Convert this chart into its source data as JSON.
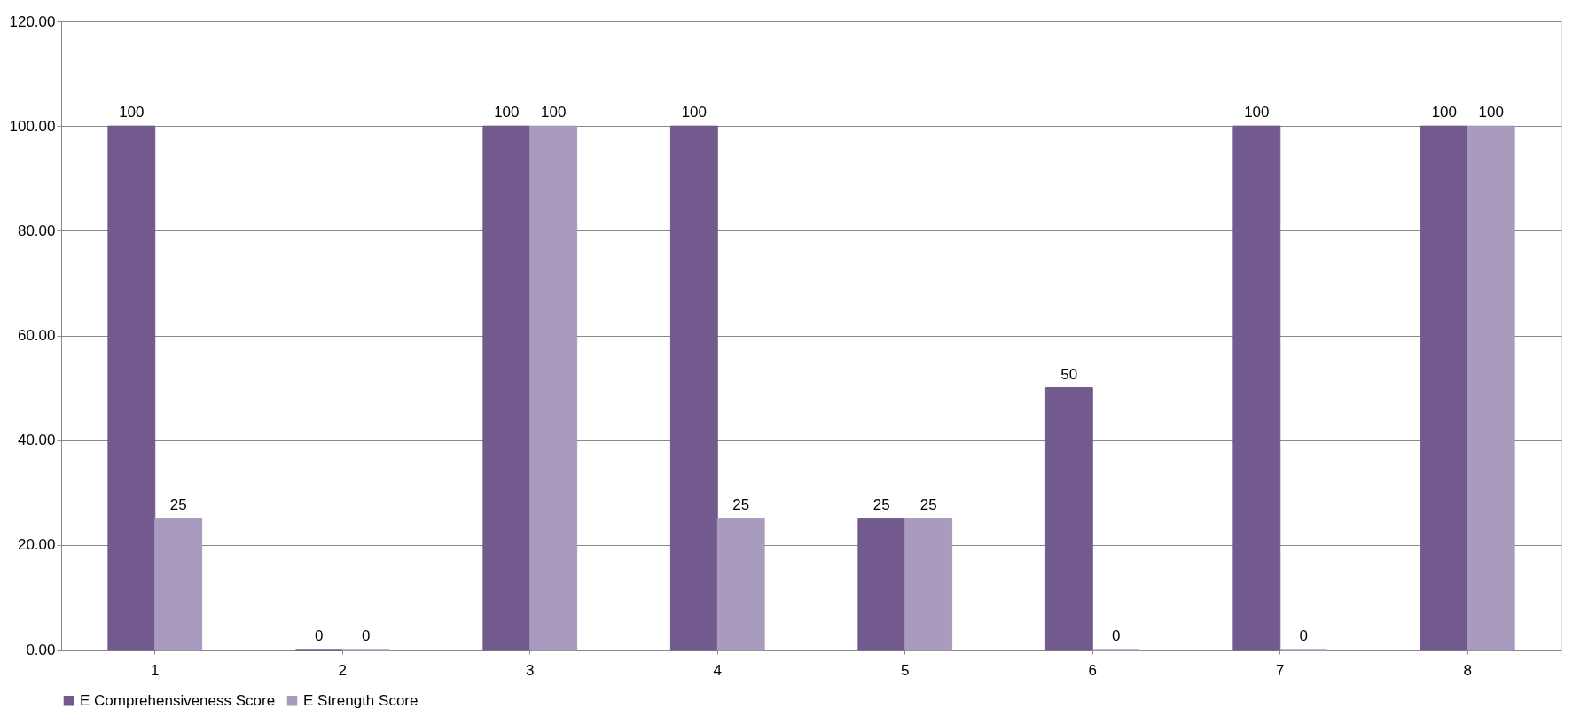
{
  "chart_data": {
    "type": "bar",
    "categories": [
      "1",
      "2",
      "3",
      "4",
      "5",
      "6",
      "7",
      "8"
    ],
    "series": [
      {
        "name": "E Comprehensiveness Score",
        "color": "#725a8e",
        "values": [
          100,
          0,
          100,
          100,
          25,
          50,
          100,
          100
        ]
      },
      {
        "name": "E Strength Score",
        "color": "#a99bbe",
        "values": [
          25,
          0,
          100,
          25,
          25,
          0,
          0,
          100
        ]
      }
    ],
    "ylim": [
      0,
      120
    ],
    "yticks": [
      {
        "value": 0,
        "label": "0.00"
      },
      {
        "value": 20,
        "label": "20.00"
      },
      {
        "value": 40,
        "label": "40.00"
      },
      {
        "value": 60,
        "label": "60.00"
      },
      {
        "value": 80,
        "label": "80.00"
      },
      {
        "value": 100,
        "label": "100.00"
      },
      {
        "value": 120,
        "label": "120.00"
      }
    ],
    "grid": "y",
    "legend": "bottom",
    "data_labels": true
  }
}
